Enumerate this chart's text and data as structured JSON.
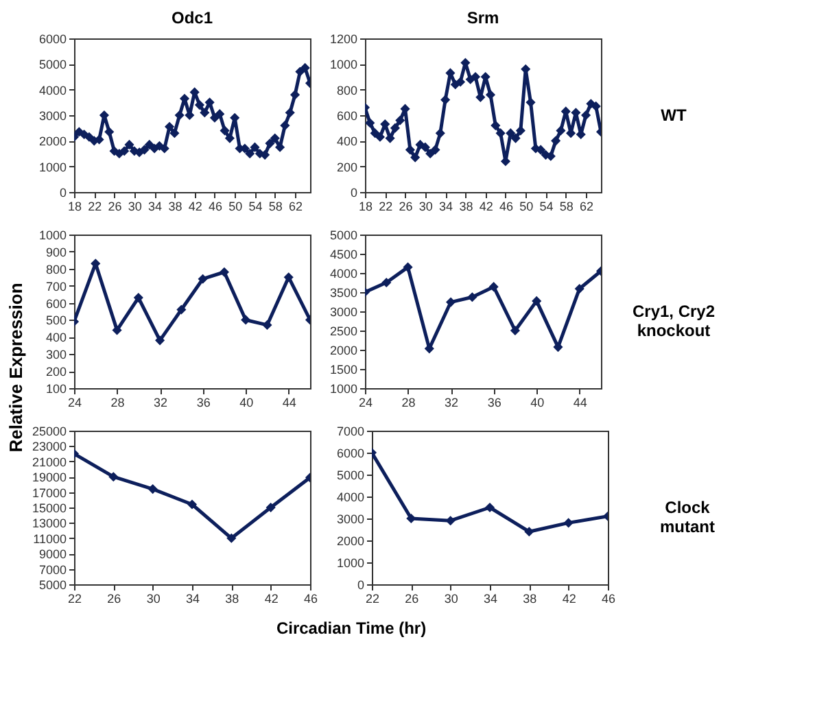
{
  "chart_data": [
    {
      "type": "line",
      "title": "Odc1",
      "color": "#0d1f5c",
      "marker": "diamond",
      "x": [
        18,
        19,
        20,
        21,
        22,
        23,
        24,
        25,
        26,
        27,
        28,
        29,
        30,
        31,
        32,
        33,
        34,
        35,
        36,
        37,
        38,
        39,
        40,
        41,
        42,
        43,
        44,
        45,
        46,
        47,
        48,
        49,
        50,
        51,
        52,
        53,
        54,
        55,
        56,
        57,
        58,
        59,
        60,
        61,
        62,
        63,
        64,
        65
      ],
      "values": [
        2150,
        2350,
        2250,
        2150,
        2000,
        2050,
        3000,
        2350,
        1600,
        1500,
        1600,
        1850,
        1600,
        1550,
        1650,
        1850,
        1700,
        1800,
        1700,
        2550,
        2300,
        3000,
        3650,
        3000,
        3900,
        3400,
        3100,
        3500,
        2900,
        3050,
        2400,
        2100,
        2900,
        1700,
        1700,
        1500,
        1750,
        1500,
        1450,
        1900,
        2100,
        1750,
        2600,
        3100,
        3800,
        4700,
        4850,
        4250
      ],
      "xlim": [
        18,
        65
      ],
      "xticks": [
        18,
        22,
        26,
        30,
        34,
        38,
        42,
        46,
        50,
        54,
        58,
        62
      ],
      "ylim": [
        0,
        6000
      ],
      "yticks": [
        0,
        1000,
        2000,
        3000,
        4000,
        5000,
        6000
      ]
    },
    {
      "type": "line",
      "title": "Srm",
      "annotations": [
        "WT"
      ],
      "color": "#0d1f5c",
      "marker": "diamond",
      "x": [
        18,
        19,
        20,
        21,
        22,
        23,
        24,
        25,
        26,
        27,
        28,
        29,
        30,
        31,
        32,
        33,
        34,
        35,
        36,
        37,
        38,
        39,
        40,
        41,
        42,
        43,
        44,
        45,
        46,
        47,
        48,
        49,
        50,
        51,
        52,
        53,
        54,
        55,
        56,
        57,
        58,
        59,
        60,
        61,
        62,
        63,
        64,
        65
      ],
      "values": [
        660,
        540,
        460,
        430,
        530,
        420,
        500,
        560,
        650,
        330,
        270,
        370,
        350,
        300,
        330,
        460,
        720,
        930,
        840,
        860,
        1010,
        880,
        900,
        740,
        900,
        760,
        520,
        460,
        240,
        460,
        420,
        480,
        960,
        700,
        340,
        330,
        290,
        280,
        400,
        480,
        630,
        460,
        620,
        450,
        600,
        690,
        670,
        470
      ],
      "xlim": [
        18,
        65
      ],
      "xticks": [
        18,
        22,
        26,
        30,
        34,
        38,
        42,
        46,
        50,
        54,
        58,
        62
      ],
      "ylim": [
        0,
        1200
      ],
      "yticks": [
        0,
        200,
        400,
        600,
        800,
        1000,
        1200
      ]
    },
    {
      "type": "line",
      "ylabel": "Relative Expression",
      "color": "#0d1f5c",
      "marker": "diamond",
      "x": [
        24,
        26,
        28,
        30,
        32,
        34,
        36,
        38,
        40,
        42,
        44,
        46
      ],
      "values": [
        490,
        830,
        440,
        630,
        380,
        560,
        740,
        780,
        500,
        470,
        750,
        500
      ],
      "xlim": [
        24,
        46
      ],
      "xticks": [
        24,
        28,
        32,
        36,
        40,
        44
      ],
      "ylim": [
        100,
        1000
      ],
      "yticks": [
        100,
        200,
        300,
        400,
        500,
        600,
        700,
        800,
        900,
        1000
      ]
    },
    {
      "type": "line",
      "annotations": [
        "Cry1, Cry2 knockout"
      ],
      "color": "#0d1f5c",
      "marker": "diamond",
      "x": [
        24,
        26,
        28,
        30,
        32,
        34,
        36,
        38,
        40,
        42,
        44,
        46
      ],
      "values": [
        3500,
        3750,
        4150,
        2030,
        3240,
        3370,
        3640,
        2500,
        3270,
        2070,
        3590,
        4050
      ],
      "xlim": [
        24,
        46
      ],
      "xticks": [
        24,
        28,
        32,
        36,
        40,
        44
      ],
      "ylim": [
        1000,
        5000
      ],
      "yticks": [
        1000,
        1500,
        2000,
        2500,
        3000,
        3500,
        4000,
        4500,
        5000
      ]
    },
    {
      "type": "line",
      "xlabel": "Circadian Time (hr)",
      "color": "#0d1f5c",
      "marker": "diamond",
      "x": [
        22,
        26,
        30,
        34,
        38,
        42,
        46
      ],
      "values": [
        22000,
        19000,
        17400,
        15400,
        11000,
        15000,
        18900
      ],
      "xlim": [
        22,
        46
      ],
      "xticks": [
        22,
        26,
        30,
        34,
        38,
        42,
        46
      ],
      "ylim": [
        5000,
        25000
      ],
      "yticks": [
        5000,
        7000,
        9000,
        11000,
        13000,
        15000,
        17000,
        19000,
        21000,
        23000,
        25000
      ]
    },
    {
      "type": "line",
      "annotations": [
        "Clock mutant"
      ],
      "color": "#0d1f5c",
      "marker": "diamond",
      "x": [
        22,
        26,
        30,
        34,
        38,
        42,
        46
      ],
      "values": [
        6000,
        3000,
        2900,
        3500,
        2400,
        2800,
        3100
      ],
      "xlim": [
        22,
        46
      ],
      "xticks": [
        22,
        26,
        30,
        34,
        38,
        42,
        46
      ],
      "ylim": [
        0,
        7000
      ],
      "yticks": [
        0,
        1000,
        2000,
        3000,
        4000,
        5000,
        6000,
        7000
      ]
    }
  ]
}
